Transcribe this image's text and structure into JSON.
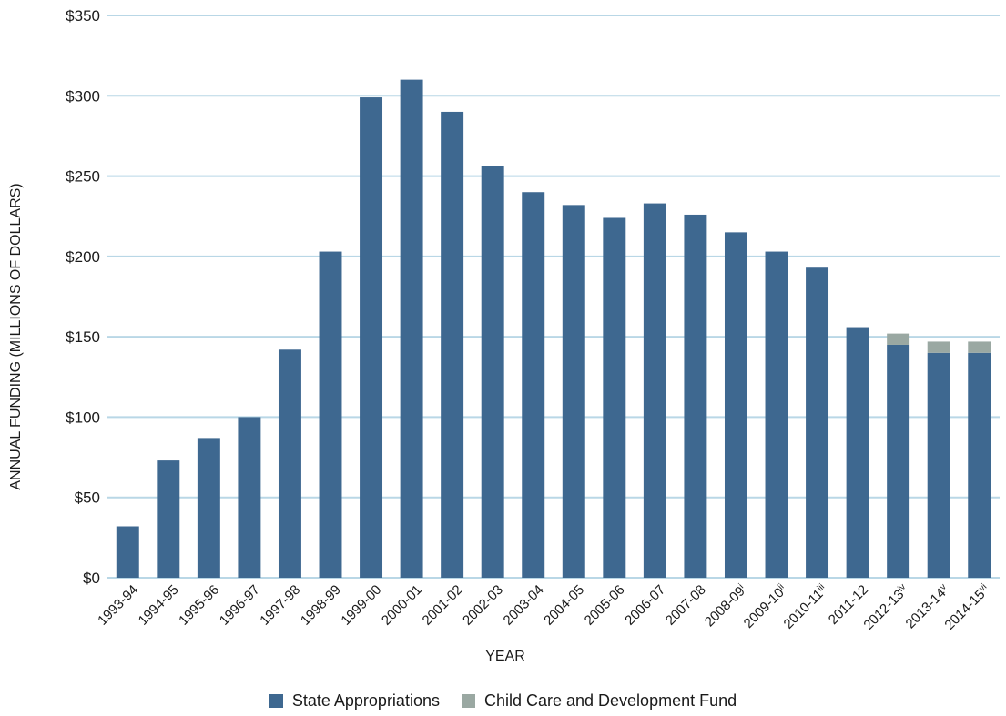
{
  "chart_data": {
    "type": "bar",
    "stacked": true,
    "xlabel": "YEAR",
    "ylabel": "ANNUAL FUNDING (MILLIONS OF DOLLARS)",
    "ylim": [
      0,
      350
    ],
    "yticks": [
      "$0",
      "$50",
      "$100",
      "$150",
      "$200",
      "$250",
      "$300",
      "$350"
    ],
    "ytick_values": [
      0,
      50,
      100,
      150,
      200,
      250,
      300,
      350
    ],
    "grid": true,
    "legend_position": "bottom",
    "categories": [
      "1993-94",
      "1994-95",
      "1995-96",
      "1996-97",
      "1997-98",
      "1998-99",
      "1999-00",
      "2000-01",
      "2001-02",
      "2002-03",
      "2003-04",
      "2004-05",
      "2005-06",
      "2006-07",
      "2007-08",
      "2008-09",
      "2009-10",
      "2010-11",
      "2011-12",
      "2012-13",
      "2013-14",
      "2014-15"
    ],
    "category_superscripts": [
      "",
      "",
      "",
      "",
      "",
      "",
      "",
      "",
      "",
      "",
      "",
      "",
      "",
      "",
      "",
      "i",
      "ii",
      "iii",
      "",
      "iv",
      "v",
      "vi"
    ],
    "series": [
      {
        "name": "State Appropriations",
        "color": "#3e6890",
        "values": [
          32,
          73,
          87,
          100,
          142,
          203,
          299,
          310,
          290,
          256,
          240,
          232,
          224,
          233,
          226,
          215,
          203,
          193,
          156,
          145,
          140,
          140
        ]
      },
      {
        "name": "Child Care and Development Fund",
        "color": "#9aa8a2",
        "values": [
          0,
          0,
          0,
          0,
          0,
          0,
          0,
          0,
          0,
          0,
          0,
          0,
          0,
          0,
          0,
          0,
          0,
          0,
          0,
          7,
          7,
          7
        ]
      }
    ]
  }
}
